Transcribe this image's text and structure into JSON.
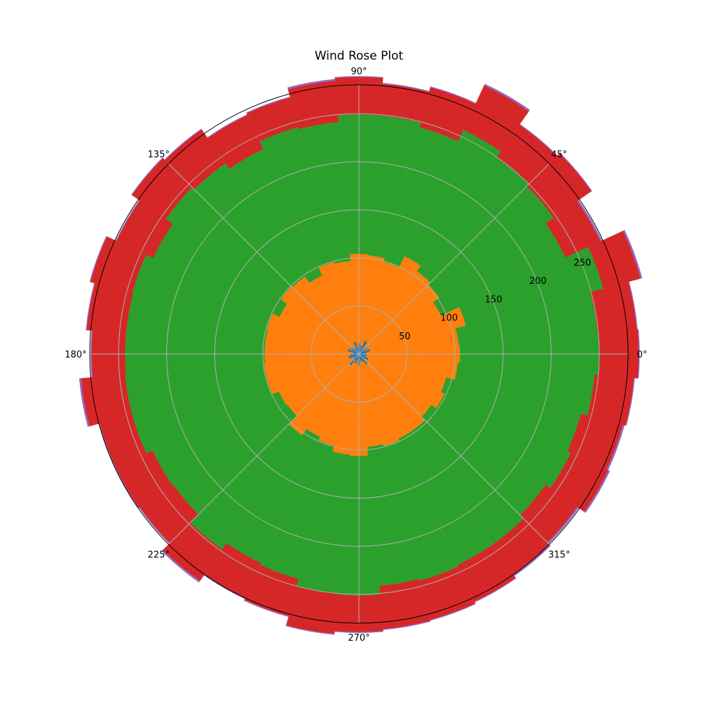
{
  "chart_data": {
    "type": "bar",
    "subtype": "polar-stacked",
    "title": "Wind Rose Plot",
    "direction_labels": [
      "0°",
      "45°",
      "90°",
      "135°",
      "180°",
      "225°",
      "270°",
      "315°"
    ],
    "direction_angles": [
      0,
      45,
      90,
      135,
      180,
      225,
      270,
      315
    ],
    "radial_ticks": [
      50,
      100,
      150,
      200,
      250
    ],
    "rlim": [
      0,
      280
    ],
    "grid": true,
    "colors": {
      "series_1": "#1f77b4",
      "series_2": "#ff7f0e",
      "series_3": "#2ca02c",
      "series_4": "#d62728",
      "series_5": "#9467bd",
      "grid": "#b0b0b0",
      "frame": "#000000"
    },
    "bin_centers": [
      0,
      10,
      20,
      30,
      40,
      50,
      60,
      70,
      80,
      90,
      100,
      110,
      120,
      130,
      140,
      150,
      160,
      170,
      180,
      190,
      200,
      210,
      220,
      230,
      240,
      250,
      260,
      270,
      280,
      290,
      300,
      310,
      320,
      330,
      340,
      350
    ],
    "series": [
      {
        "values": [
          5,
          8,
          12,
          6,
          10,
          7,
          15,
          4,
          9,
          11,
          6,
          13,
          5,
          8,
          10,
          7,
          12,
          6,
          5,
          9,
          11,
          6,
          8,
          14,
          7,
          10,
          5,
          12,
          8,
          6,
          9,
          13,
          7,
          11,
          6,
          8
        ]
      },
      {
        "values": [
          100,
          96,
          103,
          88,
          92,
          98,
          97,
          95,
          94,
          93,
          91,
          86,
          85,
          90,
          89,
          84,
          87,
          92,
          93,
          90,
          88,
          86,
          83,
          89,
          88,
          89,
          100,
          94,
          89,
          93,
          88,
          84,
          85,
          87,
          88,
          95
        ]
      },
      {
        "values": [
          145,
          145,
          148,
          143,
          145,
          145,
          145,
          145,
          146,
          145,
          145,
          145,
          145,
          144,
          146,
          145,
          145,
          145,
          145,
          145,
          145,
          145,
          145,
          145,
          145,
          143,
          145,
          145,
          145,
          145,
          145,
          145,
          145,
          145,
          145,
          143
        ]
      },
      {
        "values": [
          41,
          41,
          40,
          40,
          48,
          41,
          51,
          43,
          33,
          39,
          43,
          32,
          39,
          43,
          43,
          42,
          45,
          41,
          35,
          46,
          35,
          42,
          42,
          40,
          40,
          40,
          42,
          38,
          45,
          42,
          42,
          38,
          40,
          43,
          45,
          41
        ]
      },
      {
        "values": [
          1,
          1,
          2,
          2,
          1,
          1,
          2,
          1,
          1,
          1,
          2,
          1,
          1,
          1,
          1,
          1,
          1,
          1,
          1,
          2,
          1,
          1,
          1,
          2,
          1,
          1,
          1,
          1,
          1,
          1,
          1,
          2,
          2,
          2,
          2,
          1
        ]
      }
    ]
  }
}
